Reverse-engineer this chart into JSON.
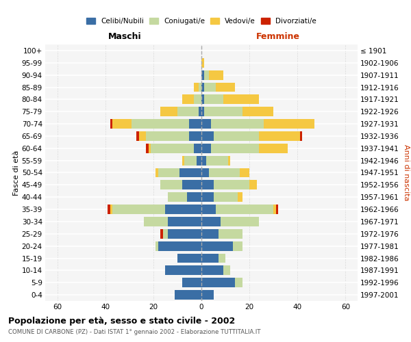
{
  "age_groups": [
    "0-4",
    "5-9",
    "10-14",
    "15-19",
    "20-24",
    "25-29",
    "30-34",
    "35-39",
    "40-44",
    "45-49",
    "50-54",
    "55-59",
    "60-64",
    "65-69",
    "70-74",
    "75-79",
    "80-84",
    "85-89",
    "90-94",
    "95-99",
    "100+"
  ],
  "birth_years": [
    "1997-2001",
    "1992-1996",
    "1987-1991",
    "1982-1986",
    "1977-1981",
    "1972-1976",
    "1967-1971",
    "1962-1966",
    "1957-1961",
    "1952-1956",
    "1947-1951",
    "1942-1946",
    "1937-1941",
    "1932-1936",
    "1927-1931",
    "1922-1926",
    "1917-1921",
    "1912-1916",
    "1907-1911",
    "1902-1906",
    "≤ 1901"
  ],
  "colors": {
    "celibi": "#3a6ea5",
    "coniugati": "#c5d9a0",
    "vedovi": "#f5c842",
    "divorziati": "#cc2200"
  },
  "maschi": {
    "celibi": [
      11,
      8,
      15,
      10,
      18,
      14,
      14,
      15,
      6,
      8,
      9,
      2,
      3,
      5,
      5,
      1,
      0,
      0,
      0,
      0,
      0
    ],
    "coniugati": [
      0,
      0,
      0,
      0,
      1,
      2,
      10,
      22,
      8,
      9,
      9,
      5,
      18,
      18,
      24,
      9,
      3,
      1,
      0,
      0,
      0
    ],
    "vedovi": [
      0,
      0,
      0,
      0,
      0,
      0,
      0,
      1,
      0,
      0,
      1,
      1,
      1,
      3,
      8,
      7,
      5,
      2,
      0,
      0,
      0
    ],
    "divorziati": [
      0,
      0,
      0,
      0,
      0,
      1,
      0,
      1,
      0,
      0,
      0,
      0,
      1,
      1,
      1,
      0,
      0,
      0,
      0,
      0,
      0
    ]
  },
  "femmine": {
    "celibi": [
      5,
      14,
      9,
      7,
      13,
      7,
      8,
      6,
      5,
      5,
      3,
      2,
      4,
      5,
      4,
      1,
      1,
      1,
      1,
      0,
      0
    ],
    "coniugati": [
      0,
      3,
      3,
      3,
      4,
      10,
      16,
      24,
      10,
      15,
      13,
      9,
      20,
      19,
      22,
      16,
      8,
      5,
      2,
      0,
      0
    ],
    "vedovi": [
      0,
      0,
      0,
      0,
      0,
      0,
      0,
      1,
      2,
      3,
      4,
      1,
      12,
      17,
      21,
      13,
      15,
      8,
      6,
      1,
      0
    ],
    "divorziati": [
      0,
      0,
      0,
      0,
      0,
      0,
      0,
      1,
      0,
      0,
      0,
      0,
      0,
      1,
      0,
      0,
      0,
      0,
      0,
      0,
      0
    ]
  },
  "xlim": 65,
  "title": "Popolazione per età, sesso e stato civile - 2002",
  "subtitle": "COMUNE DI CARBONE (PZ) - Dati ISTAT 1° gennaio 2002 - Elaborazione TUTTITALIA.IT",
  "ylabel_left": "Fasce di età",
  "ylabel_right": "Anni di nascita",
  "xlabel_maschi": "Maschi",
  "xlabel_femmine": "Femmine"
}
